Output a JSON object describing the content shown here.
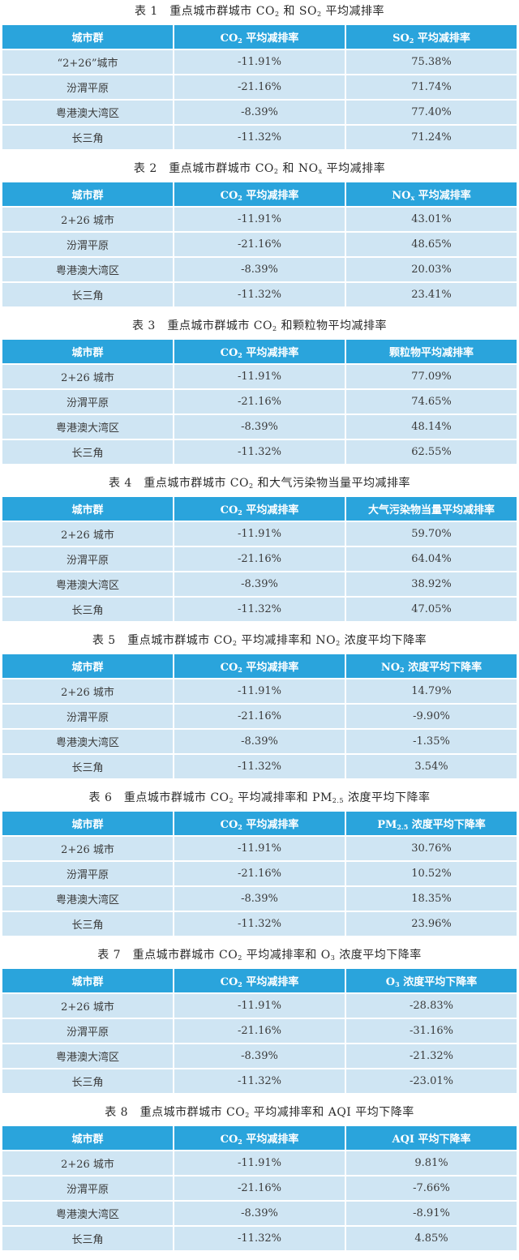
{
  "tables": [
    {
      "caption": {
        "pre": "表 1　重点城市群城市 CO",
        "s1": "2",
        "mid": " 和 SO",
        "s2": "2",
        "post": " 平均减排率"
      },
      "header": {
        "city": "城市群",
        "co2_a": "CO",
        "co2_s": "2",
        "co2_b": " 平均减排率",
        "m_a": "SO",
        "m_s": "2",
        "m_b": " 平均减排率"
      },
      "rows": [
        {
          "city": "“2+26”城市",
          "co2": "-11.91%",
          "value": "75.38%"
        },
        {
          "city": "汾渭平原",
          "co2": "-21.16%",
          "value": "71.74%"
        },
        {
          "city": "粤港澳大湾区",
          "co2": "-8.39%",
          "value": "77.40%"
        },
        {
          "city": "长三角",
          "co2": "-11.32%",
          "value": "71.24%"
        }
      ]
    },
    {
      "caption": {
        "pre": "表 2　重点城市群城市 CO",
        "s1": "2",
        "mid": " 和 NO",
        "s2": "x",
        "post": " 平均减排率"
      },
      "header": {
        "city": "城市群",
        "co2_a": "CO",
        "co2_s": "2",
        "co2_b": " 平均减排率",
        "m_a": "NO",
        "m_s": "x",
        "m_b": " 平均减排率"
      },
      "rows": [
        {
          "city": "2+26 城市",
          "co2": "-11.91%",
          "value": "43.01%"
        },
        {
          "city": "汾渭平原",
          "co2": "-21.16%",
          "value": "48.65%"
        },
        {
          "city": "粤港澳大湾区",
          "co2": "-8.39%",
          "value": "20.03%"
        },
        {
          "city": "长三角",
          "co2": "-11.32%",
          "value": "23.41%"
        }
      ]
    },
    {
      "caption": {
        "pre": "表 3　重点城市群城市 CO",
        "s1": "2",
        "mid": " 和颗粒物平均减排率",
        "s2": "",
        "post": ""
      },
      "header": {
        "city": "城市群",
        "co2_a": "CO",
        "co2_s": "2",
        "co2_b": " 平均减排率",
        "m_a": "颗粒物平均减排率",
        "m_s": "",
        "m_b": ""
      },
      "rows": [
        {
          "city": "2+26 城市",
          "co2": "-11.91%",
          "value": "77.09%"
        },
        {
          "city": "汾渭平原",
          "co2": "-21.16%",
          "value": "74.65%"
        },
        {
          "city": "粤港澳大湾区",
          "co2": "-8.39%",
          "value": "48.14%"
        },
        {
          "city": "长三角",
          "co2": "-11.32%",
          "value": "62.55%"
        }
      ]
    },
    {
      "caption": {
        "pre": "表 4　重点城市群城市 CO",
        "s1": "2",
        "mid": " 和大气污染物当量平均减排率",
        "s2": "",
        "post": ""
      },
      "header": {
        "city": "城市群",
        "co2_a": "CO",
        "co2_s": "2",
        "co2_b": " 平均减排率",
        "m_a": "大气污染物当量平均减排率",
        "m_s": "",
        "m_b": ""
      },
      "rows": [
        {
          "city": "2+26 城市",
          "co2": "-11.91%",
          "value": "59.70%"
        },
        {
          "city": "汾渭平原",
          "co2": "-21.16%",
          "value": "64.04%"
        },
        {
          "city": "粤港澳大湾区",
          "co2": "-8.39%",
          "value": "38.92%"
        },
        {
          "city": "长三角",
          "co2": "-11.32%",
          "value": "47.05%"
        }
      ]
    },
    {
      "caption": {
        "pre": "表 5　重点城市群城市 CO",
        "s1": "2",
        "mid": " 平均减排率和 NO",
        "s2": "2",
        "post": " 浓度平均下降率"
      },
      "header": {
        "city": "城市群",
        "co2_a": "CO",
        "co2_s": "2",
        "co2_b": " 平均减排率",
        "m_a": "NO",
        "m_s": "2",
        "m_b": " 浓度平均下降率"
      },
      "rows": [
        {
          "city": "2+26 城市",
          "co2": "-11.91%",
          "value": "14.79%"
        },
        {
          "city": "汾渭平原",
          "co2": "-21.16%",
          "value": "-9.90%"
        },
        {
          "city": "粤港澳大湾区",
          "co2": "-8.39%",
          "value": "-1.35%"
        },
        {
          "city": "长三角",
          "co2": "-11.32%",
          "value": "3.54%"
        }
      ]
    },
    {
      "caption": {
        "pre": "表 6　重点城市群城市 CO",
        "s1": "2",
        "mid": " 平均减排率和 PM",
        "s2": "2.5",
        "post": " 浓度平均下降率"
      },
      "header": {
        "city": "城市群",
        "co2_a": "CO",
        "co2_s": "2",
        "co2_b": " 平均减排率",
        "m_a": "PM",
        "m_s": "2.5",
        "m_b": " 浓度平均下降率"
      },
      "rows": [
        {
          "city": "2+26 城市",
          "co2": "-11.91%",
          "value": "30.76%"
        },
        {
          "city": "汾渭平原",
          "co2": "-21.16%",
          "value": "10.52%"
        },
        {
          "city": "粤港澳大湾区",
          "co2": "-8.39%",
          "value": "18.35%"
        },
        {
          "city": "长三角",
          "co2": "-11.32%",
          "value": "23.96%"
        }
      ]
    },
    {
      "caption": {
        "pre": "表 7　重点城市群城市 CO",
        "s1": "2",
        "mid": " 平均减排率和 O",
        "s2": "3",
        "post": " 浓度平均下降率"
      },
      "header": {
        "city": "城市群",
        "co2_a": "CO",
        "co2_s": "2",
        "co2_b": " 平均减排率",
        "m_a": "O",
        "m_s": "3",
        "m_b": " 浓度平均下降率"
      },
      "rows": [
        {
          "city": "2+26 城市",
          "co2": "-11.91%",
          "value": "-28.83%"
        },
        {
          "city": "汾渭平原",
          "co2": "-21.16%",
          "value": "-31.16%"
        },
        {
          "city": "粤港澳大湾区",
          "co2": "-8.39%",
          "value": "-21.32%"
        },
        {
          "city": "长三角",
          "co2": "-11.32%",
          "value": "-23.01%"
        }
      ]
    },
    {
      "caption": {
        "pre": "表 8　重点城市群城市 CO",
        "s1": "2",
        "mid": " 平均减排率和 AQI 平均下降率",
        "s2": "",
        "post": ""
      },
      "header": {
        "city": "城市群",
        "co2_a": "CO",
        "co2_s": "2",
        "co2_b": " 平均减排率",
        "m_a": "AQI 平均下降率",
        "m_s": "",
        "m_b": ""
      },
      "rows": [
        {
          "city": "2+26 城市",
          "co2": "-11.91%",
          "value": "9.81%"
        },
        {
          "city": "汾渭平原",
          "co2": "-21.16%",
          "value": "-7.66%"
        },
        {
          "city": "粤港澳大湾区",
          "co2": "-8.39%",
          "value": "-8.91%"
        },
        {
          "city": "长三角",
          "co2": "-11.32%",
          "value": "4.85%"
        }
      ]
    }
  ]
}
